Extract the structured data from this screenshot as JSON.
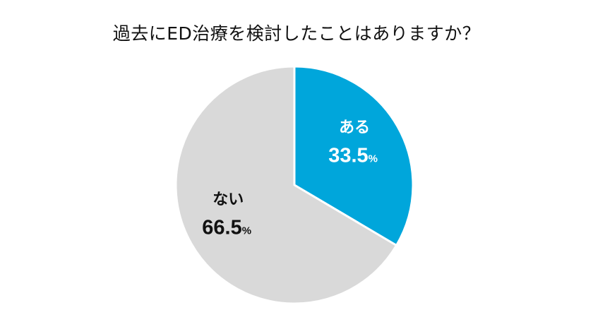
{
  "chart_data": {
    "type": "pie",
    "title": "過去にED治療を検討したことはありますか？",
    "categories": [
      "ある",
      "ない"
    ],
    "values": [
      33.5,
      66.5
    ],
    "value_labels": [
      "33.5",
      "66.5"
    ],
    "unit": "%",
    "colors": [
      "#00a6db",
      "#d9d9d9"
    ],
    "label_colors": [
      "#ffffff",
      "#111111"
    ],
    "start": "12 o'clock",
    "direction": "clockwise",
    "legend": "none"
  }
}
